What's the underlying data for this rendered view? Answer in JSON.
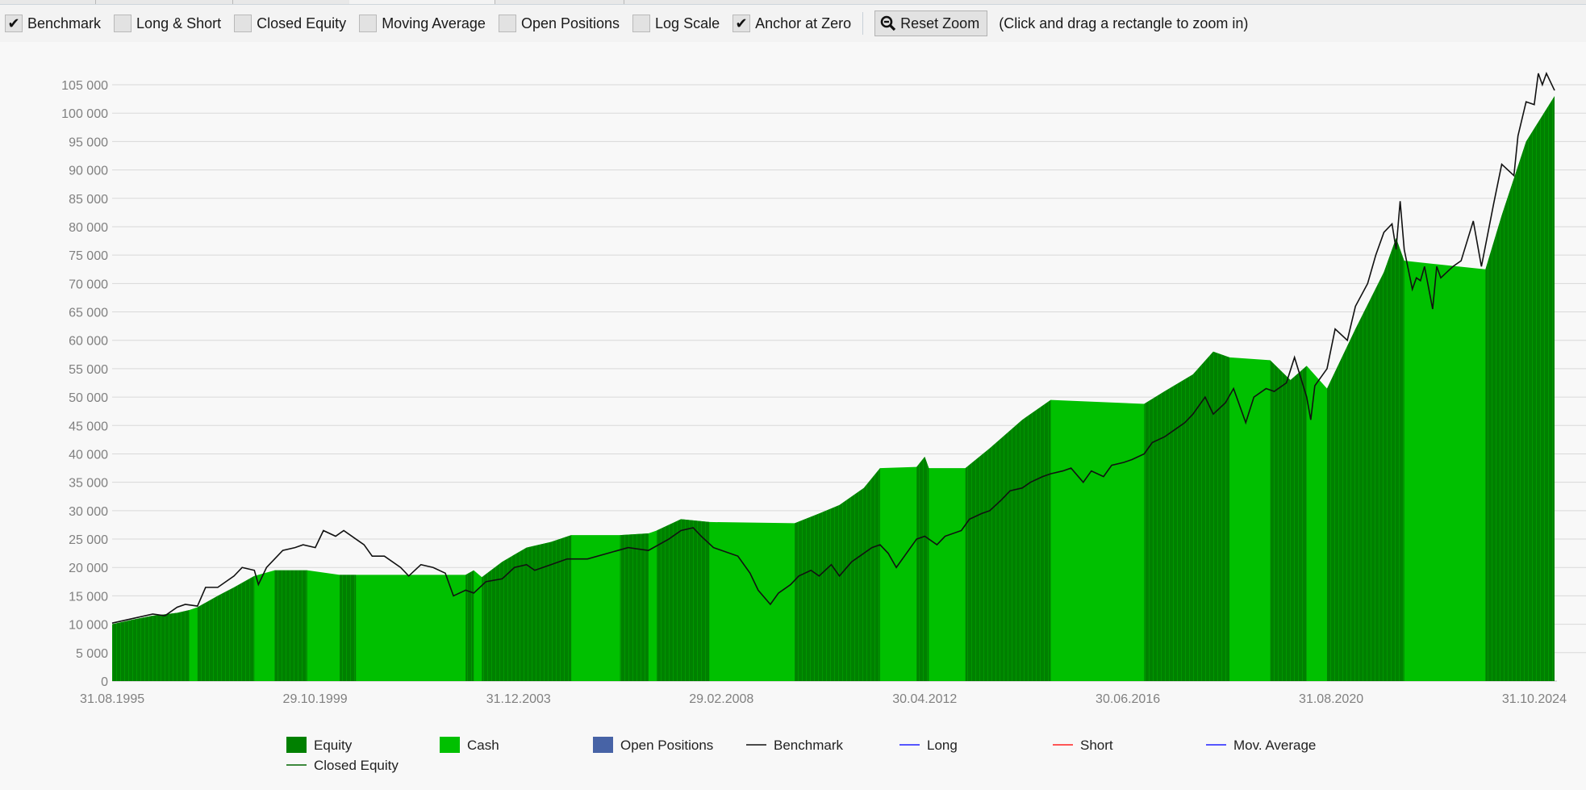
{
  "toolbar": {
    "checkboxes": [
      {
        "label": "Benchmark",
        "checked": true
      },
      {
        "label": "Long & Short",
        "checked": false
      },
      {
        "label": "Closed Equity",
        "checked": false
      },
      {
        "label": "Moving Average",
        "checked": false
      },
      {
        "label": "Open Positions",
        "checked": false
      },
      {
        "label": "Log Scale",
        "checked": false
      },
      {
        "label": "Anchor at Zero",
        "checked": true
      }
    ],
    "reset_zoom_label": "Reset Zoom",
    "hint": "(Click and drag a rectangle to zoom in)"
  },
  "chart_data": {
    "type": "area",
    "xlabel": "",
    "ylabel": "",
    "ylim": [
      0,
      105000
    ],
    "y_ticks": [
      "0",
      "5 000",
      "10 000",
      "15 000",
      "20 000",
      "25 000",
      "30 000",
      "35 000",
      "40 000",
      "45 000",
      "50 000",
      "55 000",
      "60 000",
      "65 000",
      "70 000",
      "75 000",
      "80 000",
      "85 000",
      "90 000",
      "95 000",
      "100 000",
      "105 000"
    ],
    "x_ticks": [
      "31.08.1995",
      "29.10.1999",
      "31.12.2003",
      "29.02.2008",
      "30.04.2012",
      "30.06.2016",
      "31.08.2020",
      "31.10.2024"
    ],
    "grid": "horizontal",
    "legend_placement": "bottom",
    "colors": {
      "equity": "#008000",
      "cash": "#00c000",
      "open_positions": "#4763a6",
      "benchmark": "#111111",
      "long": "#2020ff",
      "short": "#ff2020",
      "mov_average": "#2020ff",
      "closed_equity": "#006400"
    },
    "legend": [
      {
        "label": "Equity",
        "kind": "box",
        "color": "#008000"
      },
      {
        "label": "Cash",
        "kind": "box",
        "color": "#00c000"
      },
      {
        "label": "Open Positions",
        "kind": "box",
        "color": "#4763a6"
      },
      {
        "label": "Benchmark",
        "kind": "line",
        "color": "#111111"
      },
      {
        "label": "Long",
        "kind": "line",
        "color": "#2020ff"
      },
      {
        "label": "Short",
        "kind": "line",
        "color": "#ff2020"
      },
      {
        "label": "Mov. Average",
        "kind": "line",
        "color": "#2020ff"
      },
      {
        "label": "Closed Equity",
        "kind": "line",
        "color": "#006400"
      }
    ],
    "equity": [
      [
        "1995-08",
        10000
      ],
      [
        "1996-01",
        10800
      ],
      [
        "1996-06",
        11500
      ],
      [
        "1996-12",
        12000
      ],
      [
        "1997-03",
        12500
      ],
      [
        "1997-05",
        13000
      ],
      [
        "1997-10",
        15000
      ],
      [
        "1998-02",
        16500
      ],
      [
        "1998-07",
        18500
      ],
      [
        "1998-12",
        19500
      ],
      [
        "1999-08",
        19500
      ],
      [
        "2000-04",
        18700
      ],
      [
        "2000-08",
        18700
      ],
      [
        "2002-11",
        18700
      ],
      [
        "2003-01",
        19500
      ],
      [
        "2003-03",
        18300
      ],
      [
        "2003-08",
        21000
      ],
      [
        "2004-02",
        23500
      ],
      [
        "2004-08",
        24500
      ],
      [
        "2005-01",
        25700
      ],
      [
        "2006-01",
        25700
      ],
      [
        "2006-08",
        26000
      ],
      [
        "2006-10",
        26500
      ],
      [
        "2007-04",
        28500
      ],
      [
        "2007-11",
        28000
      ],
      [
        "2009-08",
        27800
      ],
      [
        "2010-02",
        29500
      ],
      [
        "2010-07",
        31000
      ],
      [
        "2011-01",
        34000
      ],
      [
        "2011-05",
        37500
      ],
      [
        "2012-02",
        37700
      ],
      [
        "2012-04",
        39500
      ],
      [
        "2012-05",
        37500
      ],
      [
        "2013-02",
        37500
      ],
      [
        "2013-08",
        41000
      ],
      [
        "2014-04",
        46000
      ],
      [
        "2014-11",
        49500
      ],
      [
        "2016-10",
        48800
      ],
      [
        "2017-03",
        51000
      ],
      [
        "2017-10",
        54000
      ],
      [
        "2018-03",
        58000
      ],
      [
        "2018-07",
        57000
      ],
      [
        "2019-05",
        56500
      ],
      [
        "2019-10",
        53000
      ],
      [
        "2020-02",
        55500
      ],
      [
        "2020-07",
        51500
      ],
      [
        "2021-02",
        62000
      ],
      [
        "2021-09",
        72000
      ],
      [
        "2021-12",
        78000
      ],
      [
        "2022-02",
        74000
      ],
      [
        "2023-10",
        72500
      ],
      [
        "2024-02",
        82000
      ],
      [
        "2024-08",
        95000
      ],
      [
        "2025-03",
        103000
      ]
    ],
    "invested_periods": [
      [
        "1995-08",
        "1997-03"
      ],
      [
        "1997-05",
        "1998-07"
      ],
      [
        "1998-12",
        "1999-08"
      ],
      [
        "2000-04",
        "2000-08"
      ],
      [
        "2002-11",
        "2003-01"
      ],
      [
        "2003-03",
        "2005-01"
      ],
      [
        "2006-01",
        "2006-08"
      ],
      [
        "2006-10",
        "2007-11"
      ],
      [
        "2009-08",
        "2011-05"
      ],
      [
        "2012-02",
        "2012-05"
      ],
      [
        "2013-02",
        "2014-11"
      ],
      [
        "2016-10",
        "2018-07"
      ],
      [
        "2019-05",
        "2020-02"
      ],
      [
        "2020-07",
        "2022-02"
      ],
      [
        "2023-10",
        "2025-03"
      ]
    ],
    "benchmark": [
      [
        "1995-08",
        10200
      ],
      [
        "1996-01",
        11000
      ],
      [
        "1996-06",
        11800
      ],
      [
        "1996-09",
        11500
      ],
      [
        "1996-12",
        13000
      ],
      [
        "1997-02",
        13500
      ],
      [
        "1997-05",
        13200
      ],
      [
        "1997-07",
        16500
      ],
      [
        "1997-10",
        16500
      ],
      [
        "1998-02",
        18500
      ],
      [
        "1998-04",
        20000
      ],
      [
        "1998-07",
        19500
      ],
      [
        "1998-08",
        17000
      ],
      [
        "1998-10",
        20000
      ],
      [
        "1999-02",
        23000
      ],
      [
        "1999-05",
        23500
      ],
      [
        "1999-07",
        24000
      ],
      [
        "1999-10",
        23500
      ],
      [
        "1999-12",
        26500
      ],
      [
        "2000-03",
        25500
      ],
      [
        "2000-05",
        26500
      ],
      [
        "2000-08",
        25000
      ],
      [
        "2000-10",
        24000
      ],
      [
        "2000-12",
        22000
      ],
      [
        "2001-03",
        22000
      ],
      [
        "2001-07",
        20000
      ],
      [
        "2001-09",
        18500
      ],
      [
        "2001-12",
        20500
      ],
      [
        "2002-03",
        20000
      ],
      [
        "2002-06",
        19000
      ],
      [
        "2002-08",
        15000
      ],
      [
        "2002-11",
        16000
      ],
      [
        "2003-01",
        15500
      ],
      [
        "2003-04",
        17500
      ],
      [
        "2003-08",
        18000
      ],
      [
        "2003-11",
        20000
      ],
      [
        "2004-02",
        20500
      ],
      [
        "2004-04",
        19500
      ],
      [
        "2004-08",
        20500
      ],
      [
        "2004-12",
        21500
      ],
      [
        "2005-05",
        21500
      ],
      [
        "2005-10",
        22500
      ],
      [
        "2006-03",
        23500
      ],
      [
        "2006-08",
        23000
      ],
      [
        "2007-01",
        25000
      ],
      [
        "2007-04",
        26500
      ],
      [
        "2007-07",
        27000
      ],
      [
        "2007-09",
        25500
      ],
      [
        "2007-12",
        23500
      ],
      [
        "2008-02",
        23000
      ],
      [
        "2008-06",
        22000
      ],
      [
        "2008-09",
        19000
      ],
      [
        "2008-11",
        16000
      ],
      [
        "2009-02",
        13500
      ],
      [
        "2009-04",
        15500
      ],
      [
        "2009-07",
        17000
      ],
      [
        "2009-09",
        18500
      ],
      [
        "2009-12",
        19500
      ],
      [
        "2010-02",
        18500
      ],
      [
        "2010-05",
        20500
      ],
      [
        "2010-07",
        18500
      ],
      [
        "2010-10",
        21000
      ],
      [
        "2010-12",
        22000
      ],
      [
        "2011-03",
        23500
      ],
      [
        "2011-05",
        24000
      ],
      [
        "2011-07",
        22500
      ],
      [
        "2011-09",
        20000
      ],
      [
        "2011-11",
        22000
      ],
      [
        "2012-02",
        25000
      ],
      [
        "2012-04",
        25500
      ],
      [
        "2012-07",
        24000
      ],
      [
        "2012-09",
        25500
      ],
      [
        "2013-01",
        26500
      ],
      [
        "2013-03",
        28500
      ],
      [
        "2013-06",
        29500
      ],
      [
        "2013-08",
        30000
      ],
      [
        "2013-11",
        32000
      ],
      [
        "2014-01",
        33500
      ],
      [
        "2014-04",
        34000
      ],
      [
        "2014-06",
        35000
      ],
      [
        "2014-09",
        36000
      ],
      [
        "2014-11",
        36500
      ],
      [
        "2015-02",
        37000
      ],
      [
        "2015-04",
        37500
      ],
      [
        "2015-07",
        35000
      ],
      [
        "2015-09",
        37000
      ],
      [
        "2015-12",
        36000
      ],
      [
        "2016-02",
        38000
      ],
      [
        "2016-05",
        38500
      ],
      [
        "2016-07",
        39000
      ],
      [
        "2016-10",
        40000
      ],
      [
        "2016-12",
        42000
      ],
      [
        "2017-03",
        43000
      ],
      [
        "2017-05",
        44000
      ],
      [
        "2017-08",
        45500
      ],
      [
        "2017-10",
        47000
      ],
      [
        "2018-01",
        50000
      ],
      [
        "2018-03",
        47000
      ],
      [
        "2018-06",
        49000
      ],
      [
        "2018-08",
        51500
      ],
      [
        "2018-11",
        45500
      ],
      [
        "2019-01",
        50000
      ],
      [
        "2019-04",
        51500
      ],
      [
        "2019-06",
        51000
      ],
      [
        "2019-09",
        52500
      ],
      [
        "2019-11",
        57000
      ],
      [
        "2020-02",
        50000
      ],
      [
        "2020-03",
        46000
      ],
      [
        "2020-04",
        52000
      ],
      [
        "2020-07",
        55000
      ],
      [
        "2020-09",
        62000
      ],
      [
        "2020-12",
        60000
      ],
      [
        "2021-02",
        66000
      ],
      [
        "2021-05",
        70000
      ],
      [
        "2021-07",
        75000
      ],
      [
        "2021-09",
        79000
      ],
      [
        "2021-11",
        80500
      ],
      [
        "2021-12",
        76000
      ],
      [
        "2022-01",
        84500
      ],
      [
        "2022-02",
        76000
      ],
      [
        "2022-04",
        69000
      ],
      [
        "2022-05",
        71000
      ],
      [
        "2022-06",
        70500
      ],
      [
        "2022-07",
        73000
      ],
      [
        "2022-09",
        65500
      ],
      [
        "2022-10",
        73000
      ],
      [
        "2022-11",
        71000
      ],
      [
        "2023-02",
        73000
      ],
      [
        "2023-04",
        74000
      ],
      [
        "2023-07",
        81000
      ],
      [
        "2023-09",
        73000
      ],
      [
        "2023-12",
        84000
      ],
      [
        "2024-02",
        91000
      ],
      [
        "2024-05",
        89000
      ],
      [
        "2024-06",
        96000
      ],
      [
        "2024-08",
        102000
      ],
      [
        "2024-10",
        101500
      ],
      [
        "2024-11",
        107000
      ],
      [
        "2024-12",
        105000
      ],
      [
        "2025-01",
        107000
      ],
      [
        "2025-03",
        104000
      ]
    ]
  }
}
